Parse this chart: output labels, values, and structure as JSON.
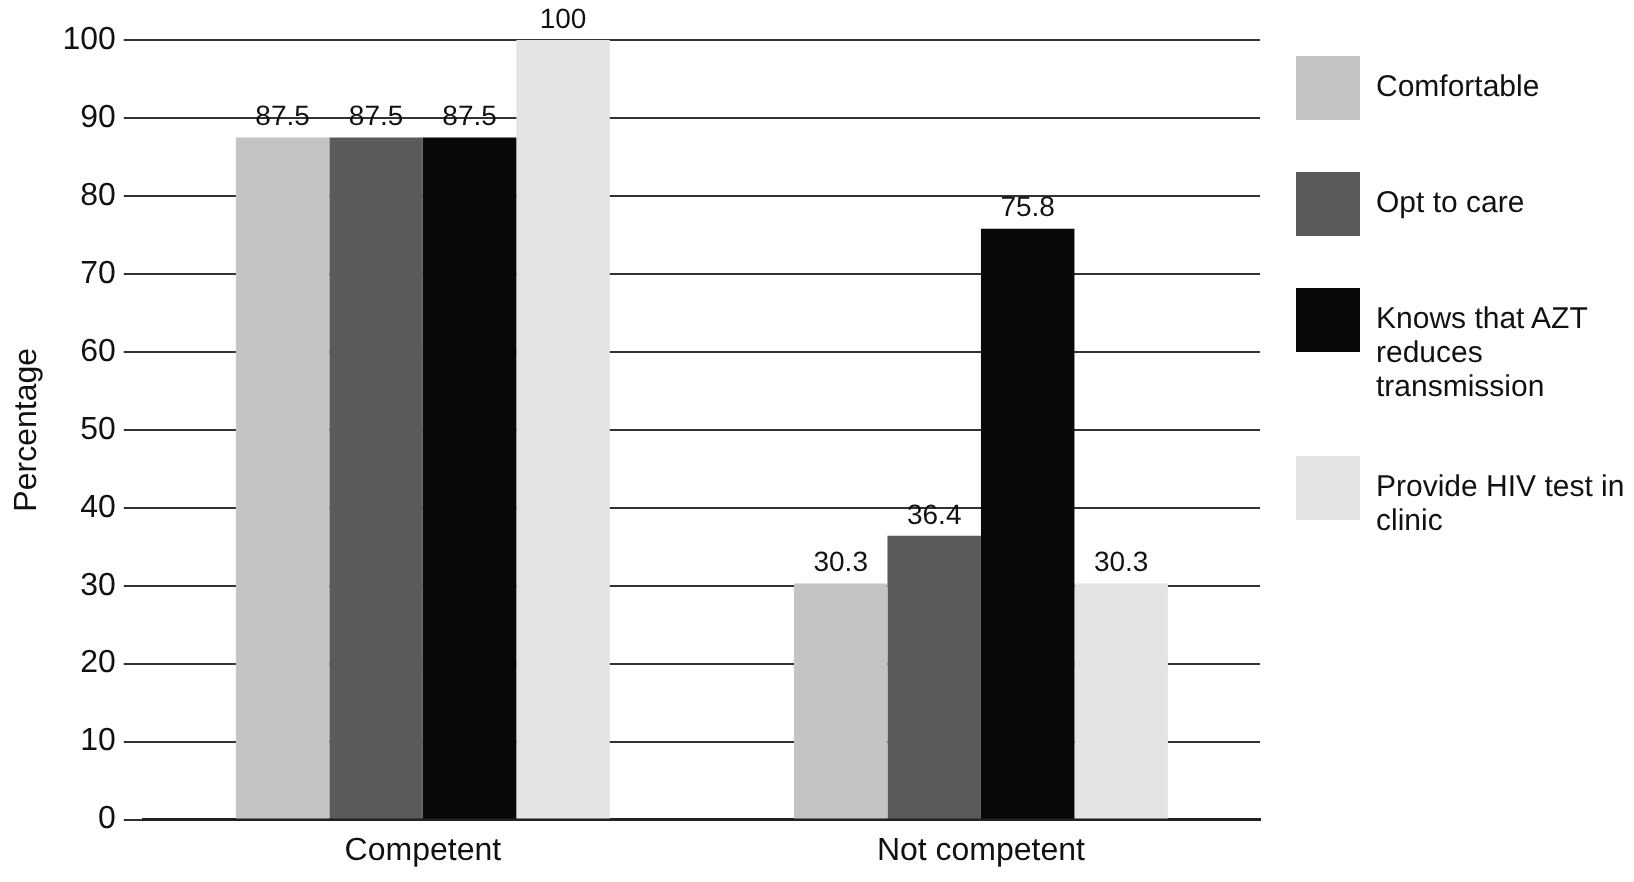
{
  "chart_data": {
    "type": "bar",
    "ylabel": "Percentage",
    "categories": [
      "Competent",
      "Not competent"
    ],
    "series": [
      {
        "name": "Comfortable",
        "color": "#c4c4c4",
        "values": [
          87.5,
          30.3
        ]
      },
      {
        "name": "Opt to care",
        "color": "#5a5a5a",
        "values": [
          87.5,
          36.4
        ]
      },
      {
        "name": "Knows that AZT reduces transmission",
        "color": "#080808",
        "values": [
          87.5,
          75.8
        ]
      },
      {
        "name": "Provide HIV test in clinic",
        "color": "#e4e4e4",
        "values": [
          100,
          30.3
        ]
      }
    ],
    "ylim": [
      0,
      100
    ],
    "yticks": [
      0,
      10,
      20,
      30,
      40,
      50,
      60,
      70,
      80,
      90,
      100
    ],
    "grid": "y",
    "legend": "right",
    "data_labels": true
  }
}
